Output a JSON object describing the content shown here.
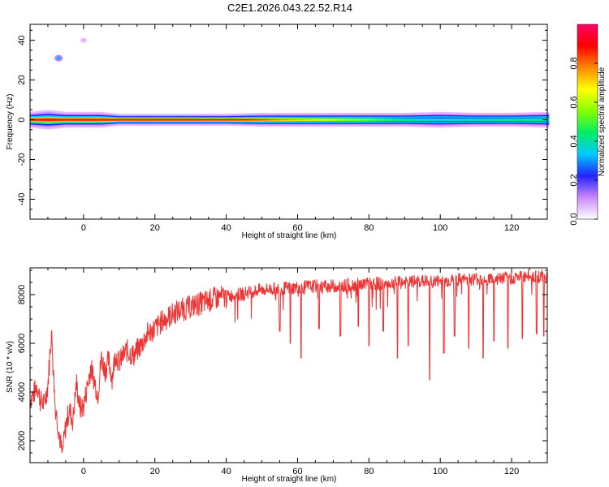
{
  "title": "C2E1.2026.043.22.52.R14",
  "colors": {
    "snr_line": "#ee3333",
    "band_core": "#ff2255",
    "band_mid": "#33ee44",
    "band_outer": "#1111dd",
    "band_halo": "#d9b8ff",
    "axis": "#000000"
  },
  "colorbar": {
    "label": "Normalized spectral amplitude",
    "ticks": [
      "0.0",
      "0.2",
      "0.4",
      "0.6",
      "0.8"
    ],
    "tick_values": [
      0.0,
      0.2,
      0.4,
      0.6,
      0.8
    ],
    "range": [
      0,
      1
    ],
    "colormap": [
      "#ffffff",
      "#cc88ff",
      "#2222ff",
      "#00ccff",
      "#00ee66",
      "#88ff00",
      "#ffff00",
      "#ff8800",
      "#ff0000",
      "#ff0066"
    ]
  },
  "chart_data": [
    {
      "type": "heatmap",
      "xlabel": "Height of straight line (km)",
      "ylabel": "Frequency (Hz)",
      "xlim": [
        -15,
        130
      ],
      "ylim": [
        -50,
        48
      ],
      "xticks": [
        0,
        20,
        40,
        60,
        80,
        100,
        120
      ],
      "xtick_labels": [
        "0",
        "20",
        "40",
        "60",
        "80",
        "100",
        "120"
      ],
      "yticks": [
        -40,
        -20,
        0,
        20,
        40
      ],
      "ytick_labels": [
        "-40",
        "-20",
        "0",
        "20",
        "40"
      ],
      "band_center_hz": 0,
      "spots": [
        {
          "x": -7,
          "y": 31,
          "amplitude": 0.2
        },
        {
          "x": 0,
          "y": 40,
          "amplitude": 0.05
        }
      ],
      "band_profile": {
        "x": [
          -15,
          -10,
          -5,
          0,
          5,
          10,
          15,
          20,
          30,
          40,
          50,
          60,
          70,
          80,
          90,
          100,
          110,
          120,
          130
        ],
        "peak_amplitude": [
          0.9,
          0.95,
          0.92,
          0.95,
          0.94,
          0.95,
          0.96,
          0.96,
          0.95,
          0.93,
          0.85,
          0.75,
          0.65,
          0.55,
          0.45,
          0.4,
          0.42,
          0.45,
          0.45
        ],
        "halfwidth_hz": [
          4,
          5,
          4,
          4,
          4,
          3,
          3,
          3,
          3,
          3,
          3.5,
          3.5,
          3.5,
          3.5,
          3.5,
          4,
          3.5,
          3.5,
          4
        ]
      }
    },
    {
      "type": "line",
      "xlabel": "Height of straight line (km)",
      "ylabel": "SNR (10 * v/v)",
      "xlim": [
        -15,
        130
      ],
      "ylim": [
        1100,
        9100
      ],
      "xticks": [
        0,
        20,
        40,
        60,
        80,
        100,
        120
      ],
      "xtick_labels": [
        "0",
        "20",
        "40",
        "60",
        "80",
        "100",
        "120"
      ],
      "yticks": [
        2000,
        4000,
        6000,
        8000
      ],
      "ytick_labels": [
        "2000",
        "4000",
        "6000",
        "8000"
      ],
      "series": [
        {
          "x": [
            -15,
            -14,
            -13,
            -12,
            -11,
            -10,
            -9,
            -8,
            -7,
            -6,
            -5,
            -4,
            -3,
            -2,
            -1,
            0,
            1,
            2,
            3,
            4,
            5,
            6,
            7,
            8,
            9,
            10,
            12,
            14,
            16,
            18,
            20,
            22,
            24,
            26,
            28,
            30,
            32,
            34,
            36,
            38,
            40,
            42,
            44,
            46,
            48,
            50,
            55,
            60,
            65,
            70,
            75,
            80,
            85,
            90,
            95,
            100,
            105,
            110,
            115,
            120,
            125,
            130
          ],
          "y": [
            3700,
            3900,
            4300,
            3600,
            3500,
            4300,
            6500,
            3500,
            2500,
            1400,
            2600,
            3300,
            2800,
            4400,
            3300,
            3400,
            4200,
            5000,
            4500,
            3900,
            5400,
            4900,
            5300,
            4600,
            5600,
            5200,
            5700,
            5500,
            5900,
            6400,
            6600,
            6900,
            7100,
            7300,
            7400,
            7500,
            7600,
            7700,
            7800,
            7900,
            7900,
            8000,
            8000,
            8100,
            8150,
            8200,
            8250,
            8300,
            8350,
            8350,
            8400,
            8450,
            8450,
            8500,
            8550,
            8550,
            8600,
            8650,
            8650,
            8700,
            8750,
            8750
          ],
          "dips": [
            {
              "x": 55,
              "y": 6500
            },
            {
              "x": 58,
              "y": 6000
            },
            {
              "x": 61,
              "y": 5400
            },
            {
              "x": 66,
              "y": 6600
            },
            {
              "x": 72,
              "y": 6300
            },
            {
              "x": 77,
              "y": 6700
            },
            {
              "x": 80,
              "y": 5900
            },
            {
              "x": 84,
              "y": 6500
            },
            {
              "x": 88,
              "y": 5400
            },
            {
              "x": 91,
              "y": 5900
            },
            {
              "x": 97,
              "y": 4500
            },
            {
              "x": 101,
              "y": 5600
            },
            {
              "x": 104,
              "y": 6300
            },
            {
              "x": 108,
              "y": 5800
            },
            {
              "x": 112,
              "y": 5400
            },
            {
              "x": 115,
              "y": 6100
            },
            {
              "x": 119,
              "y": 5800
            },
            {
              "x": 123,
              "y": 6200
            },
            {
              "x": 127,
              "y": 6400
            },
            {
              "x": 129,
              "y": 6300
            }
          ]
        }
      ]
    }
  ]
}
